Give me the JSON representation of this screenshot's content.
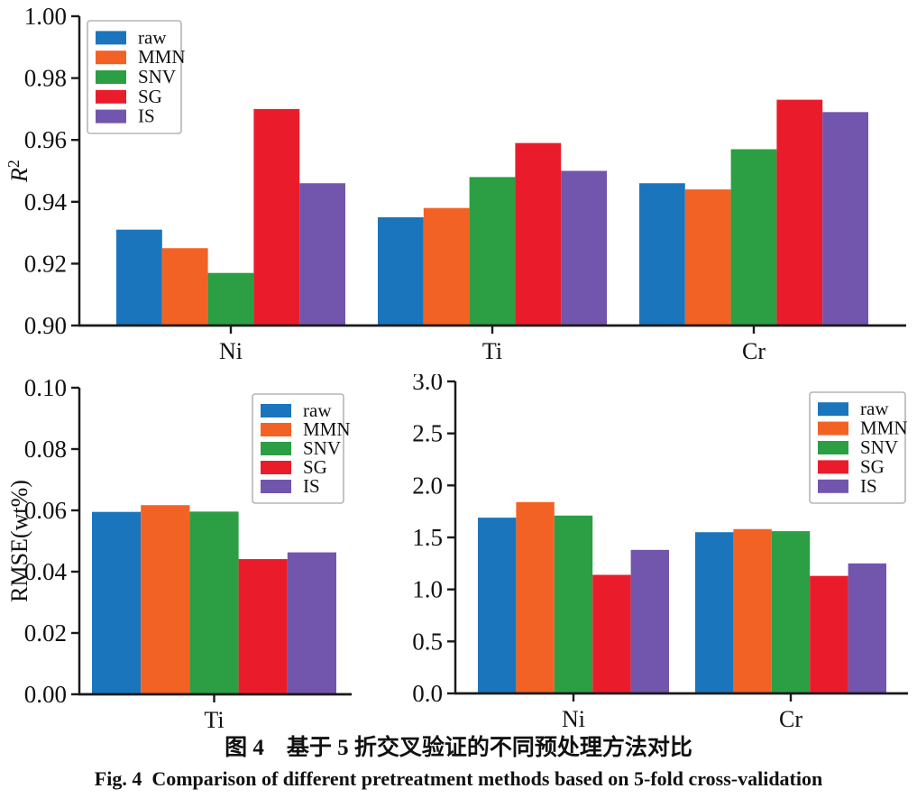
{
  "colors": {
    "axis": "#1a1a1a",
    "series": {
      "raw": "#1b75bc",
      "MMN": "#f26224",
      "SNV": "#2c9e44",
      "SG": "#ea1c2c",
      "IS": "#7255ac"
    },
    "legend_border": "#b5b5b5"
  },
  "legend": {
    "labels": [
      "raw",
      "MMN",
      "SNV",
      "SG",
      "IS"
    ]
  },
  "caption": {
    "chinese": "图 4　基于 5 折交叉验证的不同预处理方法对比",
    "english": "Fig. 4  Comparison of different pretreatment methods based on 5-fold cross-validation"
  },
  "chart_data": [
    {
      "id": "r2",
      "type": "bar",
      "title": "",
      "xlabel": "",
      "ylabel": "R",
      "ylabel_sup": "2",
      "categories": [
        "Ni",
        "Ti",
        "Cr"
      ],
      "series": [
        {
          "name": "raw",
          "values": [
            0.931,
            0.935,
            0.946
          ]
        },
        {
          "name": "MMN",
          "values": [
            0.925,
            0.938,
            0.944
          ]
        },
        {
          "name": "SNV",
          "values": [
            0.917,
            0.948,
            0.957
          ]
        },
        {
          "name": "SG",
          "values": [
            0.97,
            0.959,
            0.973
          ]
        },
        {
          "name": "IS",
          "values": [
            0.946,
            0.95,
            0.969
          ]
        }
      ],
      "ylim": [
        0.9,
        1.0
      ],
      "yticks": [
        0.9,
        0.92,
        0.94,
        0.96,
        0.98,
        1.0
      ],
      "ytick_labels": [
        "0.90",
        "0.92",
        "0.94",
        "0.96",
        "0.98",
        "1.00"
      ],
      "legend_position": "upper-left",
      "grid": false
    },
    {
      "id": "rmse-ti",
      "type": "bar",
      "title": "",
      "xlabel": "",
      "ylabel": "RMSE(wt%)",
      "categories": [
        "Ti"
      ],
      "series": [
        {
          "name": "raw",
          "values": [
            0.0595
          ]
        },
        {
          "name": "MMN",
          "values": [
            0.0617
          ]
        },
        {
          "name": "SNV",
          "values": [
            0.0596
          ]
        },
        {
          "name": "SG",
          "values": [
            0.0441
          ]
        },
        {
          "name": "IS",
          "values": [
            0.0463
          ]
        }
      ],
      "ylim": [
        0.0,
        0.1
      ],
      "yticks": [
        0.0,
        0.02,
        0.04,
        0.06,
        0.08,
        0.1
      ],
      "ytick_labels": [
        "0.00",
        "0.02",
        "0.04",
        "0.06",
        "0.08",
        "0.10"
      ],
      "legend_position": "upper-right",
      "grid": false
    },
    {
      "id": "rmse-nicr",
      "type": "bar",
      "title": "",
      "xlabel": "",
      "ylabel": "",
      "categories": [
        "Ni",
        "Cr"
      ],
      "series": [
        {
          "name": "raw",
          "values": [
            1.69,
            1.55
          ]
        },
        {
          "name": "MMN",
          "values": [
            1.84,
            1.58
          ]
        },
        {
          "name": "SNV",
          "values": [
            1.71,
            1.56
          ]
        },
        {
          "name": "SG",
          "values": [
            1.14,
            1.13
          ]
        },
        {
          "name": "IS",
          "values": [
            1.38,
            1.25
          ]
        }
      ],
      "ylim": [
        0.0,
        3.0
      ],
      "yticks": [
        0.0,
        0.5,
        1.0,
        1.5,
        2.0,
        2.5,
        3.0
      ],
      "ytick_labels": [
        "0.0",
        "0.5",
        "1.0",
        "1.5",
        "2.0",
        "2.5",
        "3.0"
      ],
      "legend_position": "upper-right",
      "grid": false
    }
  ]
}
